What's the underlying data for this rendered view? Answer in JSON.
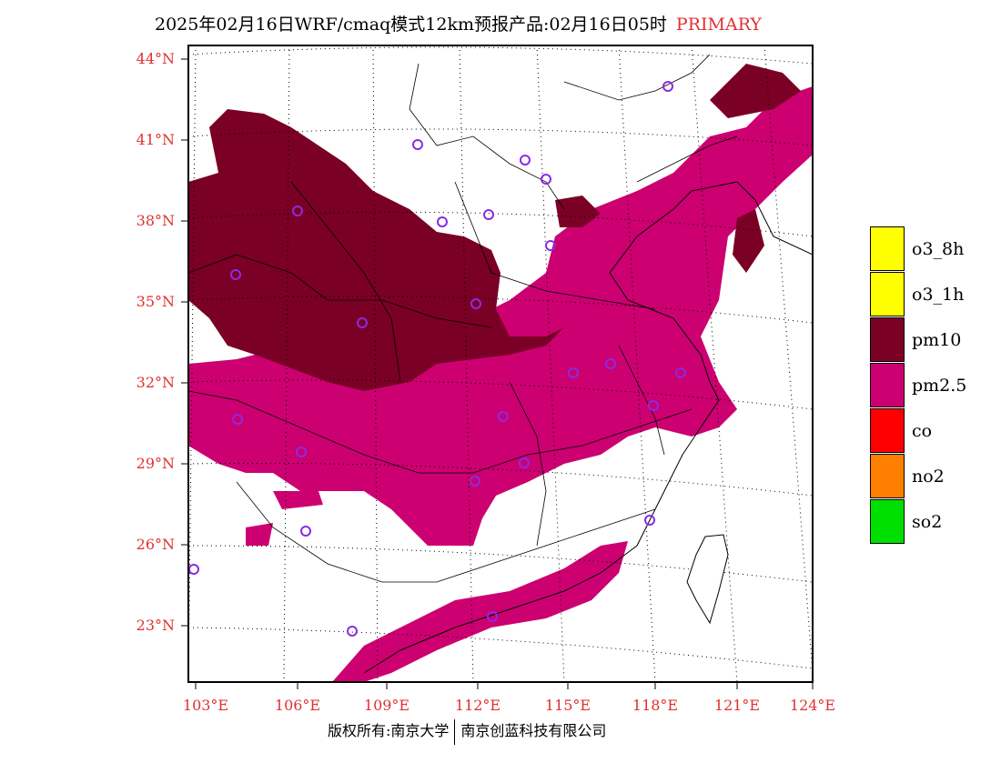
{
  "title": {
    "text": "2025年02月16日WRF/cmaq模式12km预报产品:02月16日05时",
    "tag": "PRIMARY"
  },
  "lat_labels": [
    "44°N",
    "41°N",
    "38°N",
    "35°N",
    "32°N",
    "29°N",
    "26°N",
    "23°N"
  ],
  "lon_labels": [
    "103°E",
    "106°E",
    "109°E",
    "112°E",
    "115°E",
    "118°E",
    "121°E",
    "124°E"
  ],
  "legend": [
    {
      "label": "o3_8h",
      "color": "#ffff00"
    },
    {
      "label": "o3_1h",
      "color": "#ffff00"
    },
    {
      "label": "pm10",
      "color": "#7a0026"
    },
    {
      "label": "pm2.5",
      "color": "#cc0070"
    },
    {
      "label": "co",
      "color": "#ff0000"
    },
    {
      "label": "no2",
      "color": "#ff8000"
    },
    {
      "label": "so2",
      "color": "#00e000"
    }
  ],
  "copyright": {
    "left": "版权所有:南京大学",
    "right": "南京创蓝科技有限公司"
  },
  "colors": {
    "pm10": "#7a0026",
    "pm25": "#cc0070",
    "label_red": "#e03030",
    "station": "#8a2be2"
  }
}
